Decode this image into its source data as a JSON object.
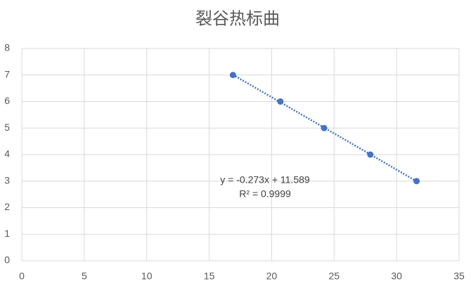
{
  "chart_data": {
    "type": "scatter",
    "title": "裂谷热标曲",
    "series": [
      {
        "color": "#4472c4",
        "x": [
          16.9,
          20.7,
          24.2,
          27.9,
          31.6
        ],
        "values": [
          7,
          6,
          5,
          4,
          3
        ]
      }
    ],
    "trendline": {
      "style": "dotted",
      "equation": "y = -0.273x + 11.589",
      "r_squared": "R² = 0.9999"
    },
    "xlim": [
      0,
      35
    ],
    "xticks": [
      0,
      5,
      10,
      15,
      20,
      25,
      30,
      35
    ],
    "ylim": [
      0,
      8
    ],
    "yticks": [
      0,
      1,
      2,
      3,
      4,
      5,
      6,
      7,
      8
    ],
    "grid": true
  }
}
